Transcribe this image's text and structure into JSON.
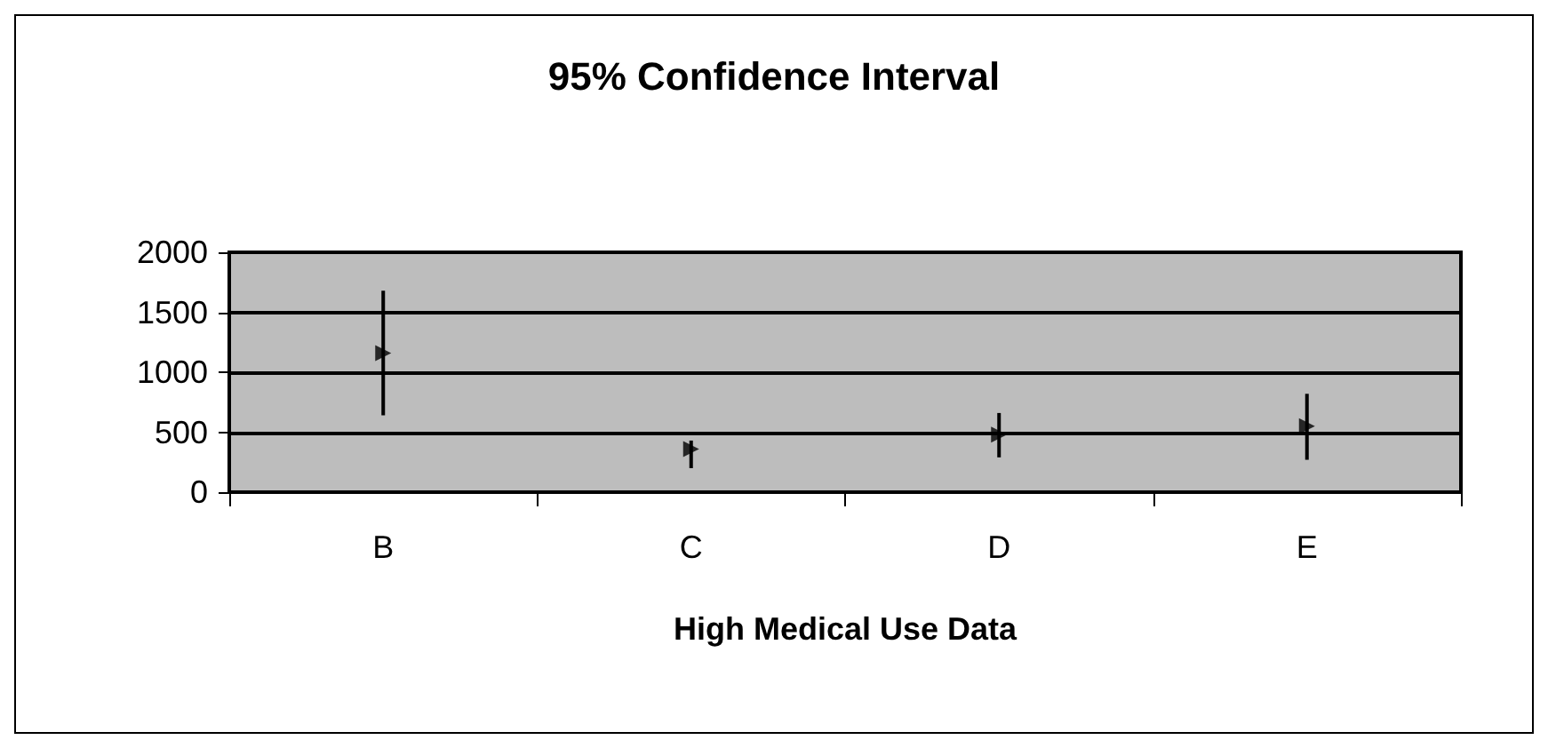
{
  "chart_data": {
    "type": "scatter",
    "title": "95% Confidence Interval",
    "xlabel": "High Medical Use Data",
    "categories": [
      "B",
      "C",
      "D",
      "E"
    ],
    "series": [
      {
        "color": "#000000",
        "values": [
          1160,
          360,
          480,
          550
        ],
        "errors": [
          [
            640,
            1680
          ],
          [
            200,
            430
          ],
          [
            290,
            660
          ],
          [
            270,
            820
          ]
        ]
      }
    ],
    "ylim": [
      0,
      2000
    ],
    "yticks": [
      0,
      500,
      1000,
      1500,
      2000
    ],
    "grid": "y",
    "marker": "triangle"
  }
}
